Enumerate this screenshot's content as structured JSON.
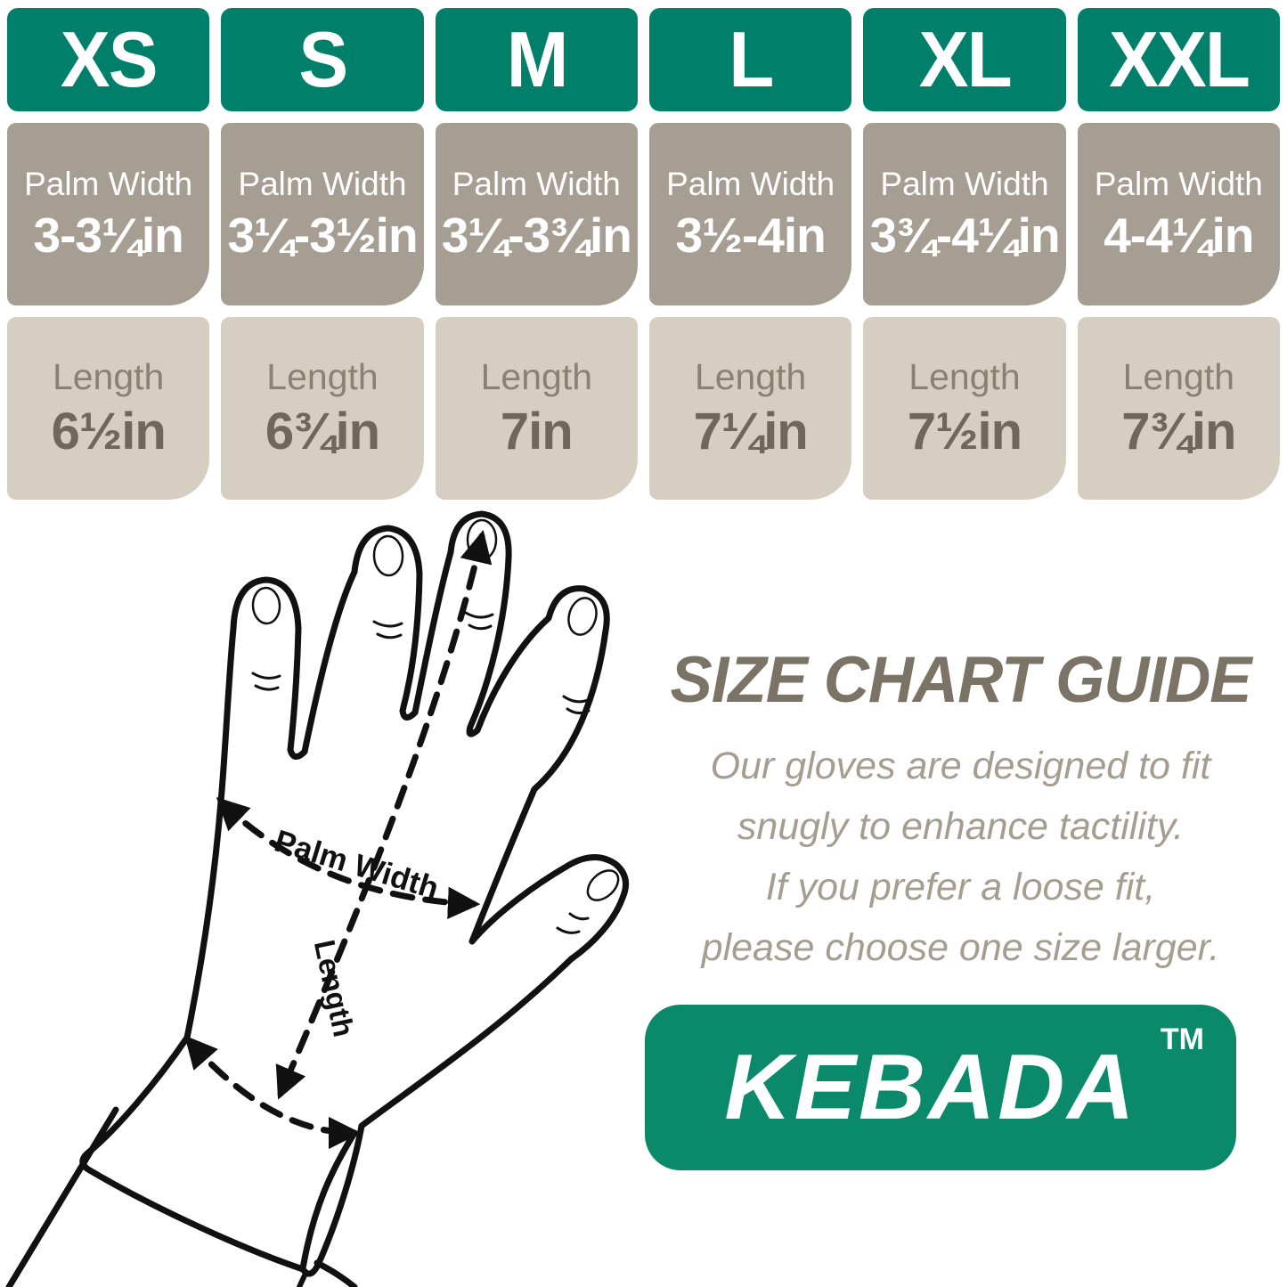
{
  "table": {
    "palm_width_label": "Palm Width",
    "length_label": "Length",
    "sizes": [
      {
        "label": "XS",
        "palm_width": "3-3¼in",
        "length": "6½in"
      },
      {
        "label": "S",
        "palm_width": "3¼-3½in",
        "length": "6¾in"
      },
      {
        "label": "M",
        "palm_width": "3¼-3¾in",
        "length": "7in"
      },
      {
        "label": "L",
        "palm_width": "3½-4in",
        "length": "7¼in"
      },
      {
        "label": "XL",
        "palm_width": "3¾-4¼in",
        "length": "7½in"
      },
      {
        "label": "XXL",
        "palm_width": "4-4¼in",
        "length": "7¾in"
      }
    ]
  },
  "hand_diagram": {
    "palm_width_label": "Palm Width",
    "length_label": "Length"
  },
  "guide": {
    "title": "SIZE CHART GUIDE",
    "lines": [
      "Our gloves are designed to fit",
      "snugly to enhance tactility.",
      "If you prefer a loose fit,",
      "please choose one size larger."
    ],
    "brand": "KEBADA",
    "trademark": "TM"
  },
  "colors": {
    "teal": "#00806b",
    "logo_green": "#0a8a6a",
    "palm_row_bg": "#a79e93",
    "length_row_bg": "#d6cfc1",
    "length_label": "#8a8173",
    "length_text": "#6f675c",
    "title_text": "#7b7466",
    "body_text": "#a49d90",
    "ink": "#111111"
  }
}
